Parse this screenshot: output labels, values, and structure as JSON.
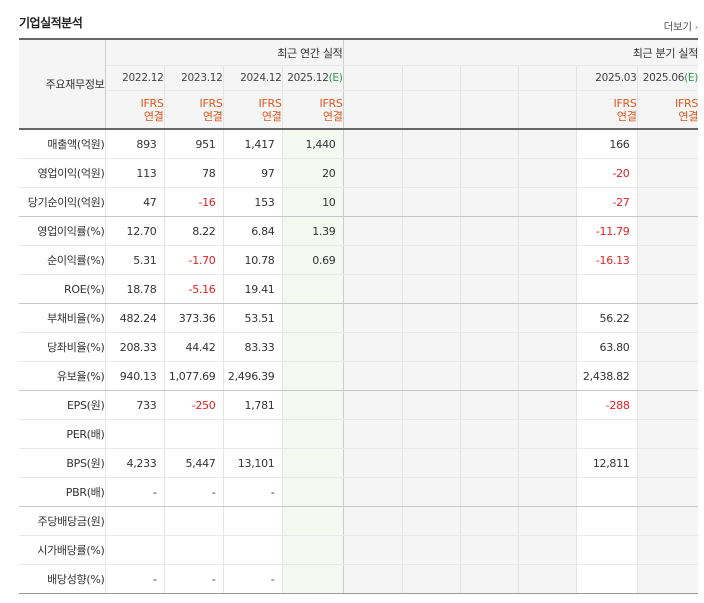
{
  "header": {
    "title": "기업실적분석",
    "more_label": "더보기",
    "more_arrow": "›"
  },
  "table": {
    "corner_label": "주요재무정보",
    "annual_group_label": "최근 연간 실적",
    "quarter_group_label": "최근 분기 실적",
    "annual_periods": [
      {
        "label": "2022.12",
        "est": ""
      },
      {
        "label": "2023.12",
        "est": ""
      },
      {
        "label": "2024.12",
        "est": ""
      },
      {
        "label": "2025.12",
        "est": "(E)"
      }
    ],
    "quarter_periods": [
      {
        "label": "",
        "est": ""
      },
      {
        "label": "",
        "est": ""
      },
      {
        "label": "",
        "est": ""
      },
      {
        "label": "",
        "est": ""
      },
      {
        "label": "2025.03",
        "est": ""
      },
      {
        "label": "2025.06",
        "est": "(E)"
      }
    ],
    "acct_line1": "IFRS",
    "acct_line2": "연결",
    "rows": [
      {
        "label": "매출액(억원)",
        "annual": [
          "893",
          "951",
          "1,417",
          "1,440"
        ],
        "quarter": [
          "",
          "",
          "",
          "",
          "166",
          ""
        ]
      },
      {
        "label": "영업이익(억원)",
        "annual": [
          "113",
          "78",
          "97",
          "20"
        ],
        "quarter": [
          "",
          "",
          "",
          "",
          "-20",
          ""
        ]
      },
      {
        "label": "당기순이익(억원)",
        "annual": [
          "47",
          "-16",
          "153",
          "10"
        ],
        "quarter": [
          "",
          "",
          "",
          "",
          "-27",
          ""
        ]
      },
      {
        "label": "영업이익률(%)",
        "annual": [
          "12.70",
          "8.22",
          "6.84",
          "1.39"
        ],
        "quarter": [
          "",
          "",
          "",
          "",
          "-11.79",
          ""
        ]
      },
      {
        "label": "순이익률(%)",
        "annual": [
          "5.31",
          "-1.70",
          "10.78",
          "0.69"
        ],
        "quarter": [
          "",
          "",
          "",
          "",
          "-16.13",
          ""
        ]
      },
      {
        "label": "ROE(%)",
        "annual": [
          "18.78",
          "-5.16",
          "19.41",
          ""
        ],
        "quarter": [
          "",
          "",
          "",
          "",
          "",
          ""
        ]
      },
      {
        "label": "부채비율(%)",
        "annual": [
          "482.24",
          "373.36",
          "53.51",
          ""
        ],
        "quarter": [
          "",
          "",
          "",
          "",
          "56.22",
          ""
        ]
      },
      {
        "label": "당좌비율(%)",
        "annual": [
          "208.33",
          "44.42",
          "83.33",
          ""
        ],
        "quarter": [
          "",
          "",
          "",
          "",
          "63.80",
          ""
        ]
      },
      {
        "label": "유보율(%)",
        "annual": [
          "940.13",
          "1,077.69",
          "2,496.39",
          ""
        ],
        "quarter": [
          "",
          "",
          "",
          "",
          "2,438.82",
          ""
        ]
      },
      {
        "label": "EPS(원)",
        "annual": [
          "733",
          "-250",
          "1,781",
          ""
        ],
        "quarter": [
          "",
          "",
          "",
          "",
          "-288",
          ""
        ]
      },
      {
        "label": "PER(배)",
        "annual": [
          "",
          "",
          "",
          ""
        ],
        "quarter": [
          "",
          "",
          "",
          "",
          "",
          ""
        ]
      },
      {
        "label": "BPS(원)",
        "annual": [
          "4,233",
          "5,447",
          "13,101",
          ""
        ],
        "quarter": [
          "",
          "",
          "",
          "",
          "12,811",
          ""
        ]
      },
      {
        "label": "PBR(배)",
        "annual": [
          "-",
          "-",
          "-",
          ""
        ],
        "quarter": [
          "",
          "",
          "",
          "",
          "",
          ""
        ]
      },
      {
        "label": "주당배당금(원)",
        "annual": [
          "",
          "",
          "",
          ""
        ],
        "quarter": [
          "",
          "",
          "",
          "",
          "",
          ""
        ]
      },
      {
        "label": "시가배당률(%)",
        "annual": [
          "",
          "",
          "",
          ""
        ],
        "quarter": [
          "",
          "",
          "",
          "",
          "",
          ""
        ]
      },
      {
        "label": "배당성향(%)",
        "annual": [
          "-",
          "-",
          "-",
          ""
        ],
        "quarter": [
          "",
          "",
          "",
          "",
          "",
          ""
        ]
      }
    ]
  }
}
